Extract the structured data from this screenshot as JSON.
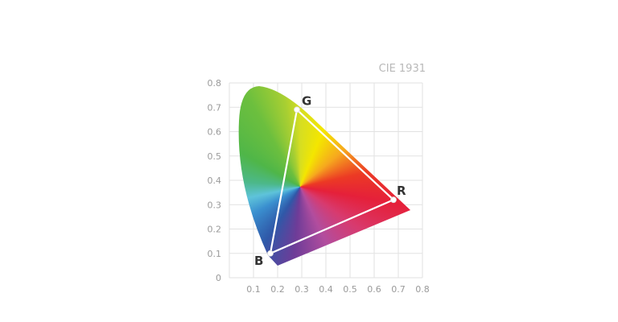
{
  "chart_data": {
    "type": "scatter",
    "title": "CIE 1931",
    "xlim": [
      0,
      0.8
    ],
    "ylim": [
      0,
      0.8
    ],
    "x_ticks": [
      "0.1",
      "0.2",
      "0.3",
      "0.4",
      "0.5",
      "0.6",
      "0.7",
      "0.8"
    ],
    "y_ticks": [
      "0",
      "0.1",
      "0.2",
      "0.3",
      "0.4",
      "0.5",
      "0.6",
      "0.7",
      "0.8"
    ],
    "grid": true,
    "points": [
      {
        "label": "G",
        "x": 0.28,
        "y": 0.69
      },
      {
        "label": "R",
        "x": 0.68,
        "y": 0.32
      },
      {
        "label": "B",
        "x": 0.17,
        "y": 0.1
      }
    ],
    "gamut_line_color": "#ffffff"
  }
}
